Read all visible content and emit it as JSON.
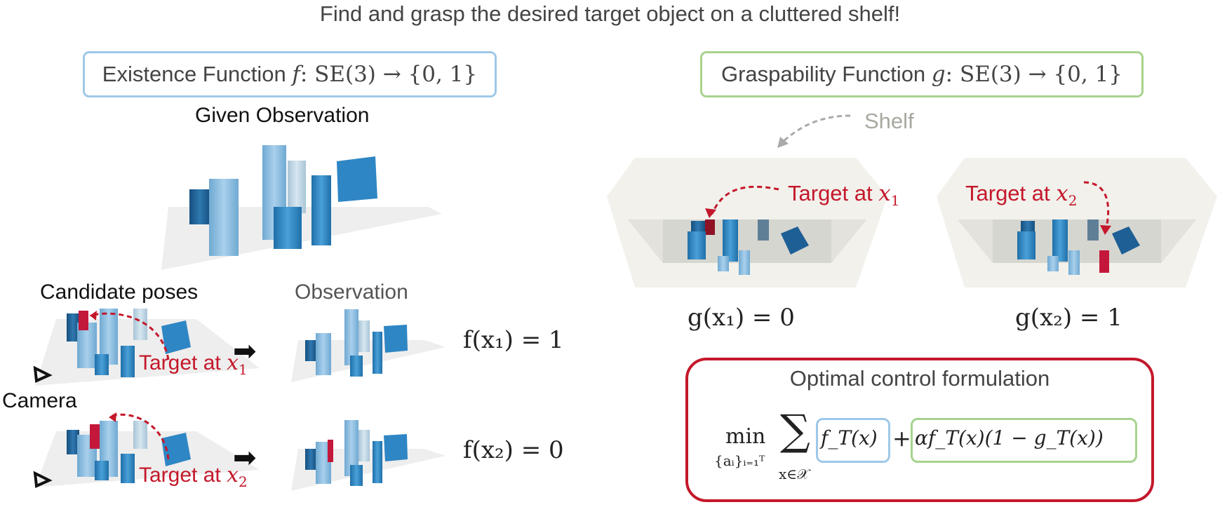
{
  "title": "Find and grasp the desired target object on a cluttered shelf!",
  "existence": {
    "label": "Existence Function",
    "sym": "f",
    "domain": ": SE(3) → {0, 1}"
  },
  "graspability": {
    "label": "Graspability Function",
    "sym": "g",
    "domain": ": SE(3) → {0, 1}"
  },
  "given_observation": "Given Observation",
  "candidate_poses": "Candidate poses",
  "observation": "Observation",
  "camera": "Camera",
  "shelf": "Shelf",
  "target_at": "Target at",
  "x1": "x",
  "sub1": "1",
  "sub2": "2",
  "eq_f1": "f(x₁) = 1",
  "eq_f2": "f(x₂) = 0",
  "eq_g1": "g(x₁) = 0",
  "eq_g2": "g(x₂) = 1",
  "optimal": {
    "title": "Optimal control formulation",
    "min": "min",
    "min_sub": "{aᵢ}ᵢ₌₁ᵀ",
    "sum": "∑",
    "sum_sub": "x∈𝒳",
    "term1": "f_T(x)",
    "plus": "+",
    "term2": "αf_T(x)(1 − g_T(x))"
  },
  "colors": {
    "blue": "#9ec8e8",
    "green": "#a7d38d",
    "red": "#c4182b",
    "object_blue": "#2f86c4",
    "target": "#c4183b"
  }
}
